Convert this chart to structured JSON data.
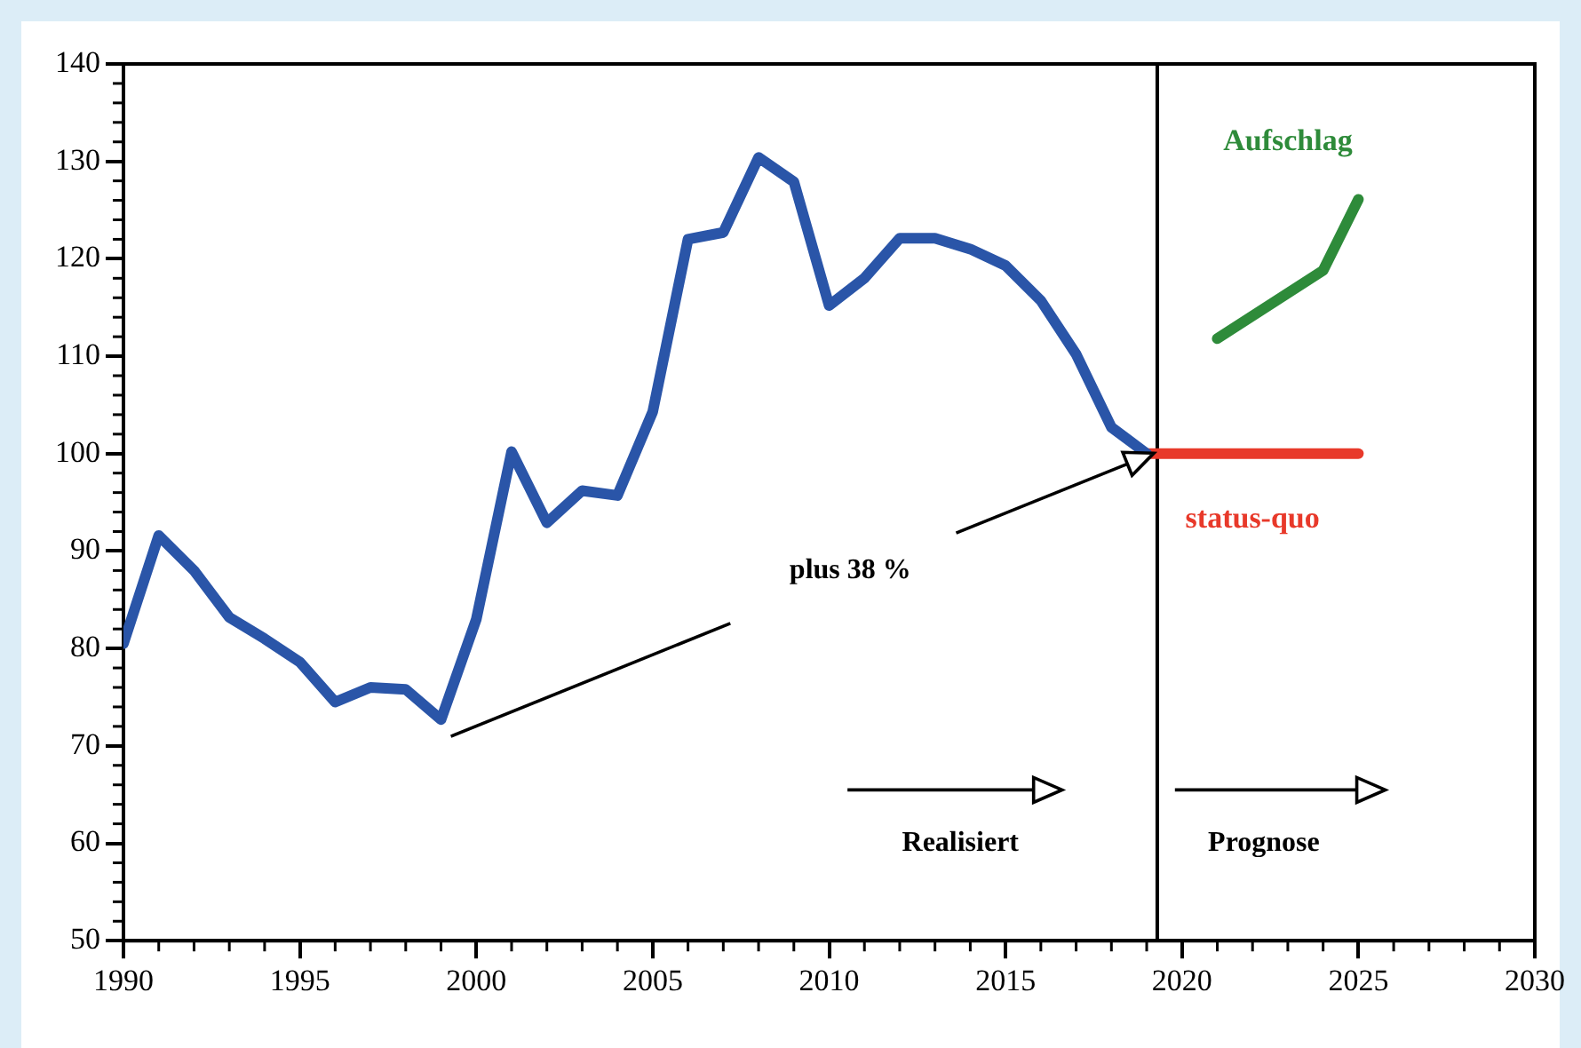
{
  "chart_data": {
    "type": "line",
    "x": [
      1990,
      1991,
      1992,
      1993,
      1994,
      1995,
      1996,
      1997,
      1998,
      1999,
      2000,
      2001,
      2002,
      2003,
      2004,
      2005,
      2006,
      2007,
      2008,
      2009,
      2010,
      2011,
      2012,
      2013,
      2014,
      2015,
      2016,
      2017,
      2018,
      2019
    ],
    "series": [
      {
        "color": "#2a55a8",
        "values": [
          80.5,
          91.6,
          88,
          83.2,
          81,
          78.6,
          74.5,
          76,
          75.8,
          72.7,
          83,
          100.2,
          92.9,
          96.2,
          95.7,
          104.3,
          122,
          122.7,
          130.4,
          127.9,
          115.2,
          118,
          122.1,
          122.1,
          121,
          119.3,
          115.7,
          110.2,
          102.7,
          100
        ]
      },
      {
        "name": "Aufschlag",
        "color": "#2e8b3a",
        "x": [
          2021,
          2024,
          2025
        ],
        "values": [
          111.8,
          118.8,
          126.1
        ]
      },
      {
        "name": "status-quo",
        "color": "#e8392a",
        "x": [
          2019,
          2025
        ],
        "values": [
          100,
          100
        ]
      }
    ],
    "xlim": [
      1990,
      2030
    ],
    "xticks": [
      1990,
      1995,
      2000,
      2005,
      2010,
      2015,
      2020,
      2025,
      2030
    ],
    "ylim": [
      50,
      140
    ],
    "yticks": [
      50,
      60,
      70,
      80,
      90,
      100,
      110,
      120,
      130,
      140
    ],
    "ref_lines": [
      {
        "axis": "x",
        "value": 2019.3,
        "color": "#000000"
      }
    ],
    "annotations": [
      "plus 38 %",
      "Realisiert",
      "Prognose"
    ],
    "grid": false,
    "legend": false,
    "marker": "none",
    "line_style": "solid"
  }
}
